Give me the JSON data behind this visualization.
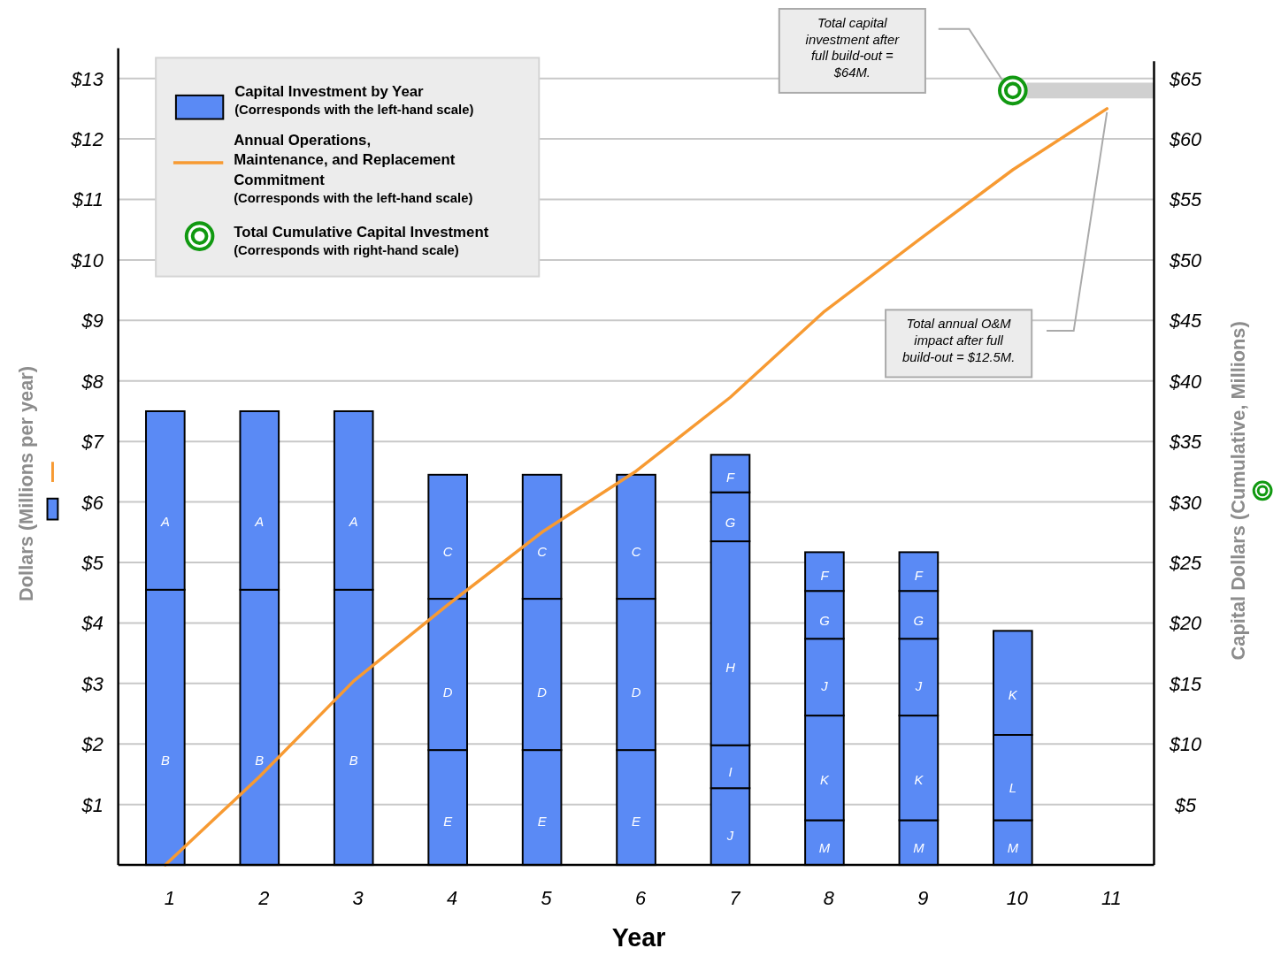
{
  "chart_data": {
    "type": "bar",
    "stacked": true,
    "xlabel": "Year",
    "ylabel": "Dollars (Millions per year)",
    "y2label": "Capital Dollars (Cumulative, Millions)",
    "categories": [
      "1",
      "2",
      "3",
      "4",
      "5",
      "6",
      "7",
      "8",
      "9",
      "10",
      "11"
    ],
    "series": [
      {
        "name": "M",
        "color": "#5a8af5",
        "values": [
          null,
          null,
          null,
          null,
          null,
          null,
          null,
          0.74,
          0.74,
          0.74,
          null
        ]
      },
      {
        "name": "L",
        "color": "#5a8af5",
        "values": [
          null,
          null,
          null,
          null,
          null,
          null,
          null,
          null,
          null,
          1.41,
          null
        ]
      },
      {
        "name": "K",
        "color": "#5a8af5",
        "values": [
          null,
          null,
          null,
          null,
          null,
          null,
          null,
          1.73,
          1.73,
          1.72,
          null
        ]
      },
      {
        "name": "J",
        "color": "#5a8af5",
        "values": [
          null,
          null,
          null,
          null,
          null,
          null,
          1.27,
          1.27,
          1.27,
          null,
          null
        ]
      },
      {
        "name": "I",
        "color": "#5a8af5",
        "values": [
          null,
          null,
          null,
          null,
          null,
          null,
          0.71,
          null,
          null,
          null,
          null
        ]
      },
      {
        "name": "H",
        "color": "#5a8af5",
        "values": [
          null,
          null,
          null,
          null,
          null,
          null,
          3.37,
          null,
          null,
          null,
          null
        ]
      },
      {
        "name": "G",
        "color": "#5a8af5",
        "values": [
          null,
          null,
          null,
          null,
          null,
          null,
          0.81,
          0.79,
          0.79,
          null,
          null
        ]
      },
      {
        "name": "F",
        "color": "#5a8af5",
        "values": [
          null,
          null,
          null,
          null,
          null,
          null,
          0.62,
          0.64,
          0.64,
          null,
          null
        ]
      },
      {
        "name": "B",
        "color": "#5a8af5",
        "values": [
          4.55,
          4.55,
          4.55,
          null,
          null,
          null,
          null,
          null,
          null,
          null,
          null
        ]
      },
      {
        "name": "A",
        "color": "#5a8af5",
        "values": [
          2.95,
          2.95,
          2.95,
          null,
          null,
          null,
          null,
          null,
          null,
          null,
          null
        ]
      },
      {
        "name": "E",
        "color": "#5a8af5",
        "values": [
          null,
          null,
          null,
          1.9,
          1.9,
          1.9,
          null,
          null,
          null,
          null,
          null
        ]
      },
      {
        "name": "D",
        "color": "#5a8af5",
        "values": [
          null,
          null,
          null,
          2.5,
          2.5,
          2.5,
          null,
          null,
          null,
          null,
          null
        ]
      },
      {
        "name": "C",
        "color": "#5a8af5",
        "values": [
          null,
          null,
          null,
          2.05,
          2.05,
          2.05,
          null,
          null,
          null,
          null,
          null
        ]
      },
      {
        "name": "Annual Operations, Maintenance, and Replacement Commitment",
        "type": "line",
        "color": "#f79a32",
        "values": [
          0,
          1.46,
          3.04,
          4.3,
          5.5,
          6.51,
          7.73,
          9.15,
          10.33,
          11.49,
          12.5
        ]
      },
      {
        "name": "Total Cumulative Capital Investment",
        "type": "scatter",
        "axis": "y2",
        "color": "#119911",
        "x": [
          "10"
        ],
        "values": [
          64
        ]
      }
    ],
    "ylim": [
      0,
      13.5
    ],
    "yticks": [
      {
        "value": 1,
        "label": "$1"
      },
      {
        "value": 2,
        "label": "$2"
      },
      {
        "value": 3,
        "label": "$3"
      },
      {
        "value": 4,
        "label": "$4"
      },
      {
        "value": 5,
        "label": "$5"
      },
      {
        "value": 6,
        "label": "$6"
      },
      {
        "value": 7,
        "label": "$7"
      },
      {
        "value": 8,
        "label": "$8"
      },
      {
        "value": 9,
        "label": "$9"
      },
      {
        "value": 10,
        "label": "$10"
      },
      {
        "value": 11,
        "label": "$11"
      },
      {
        "value": 12,
        "label": "$12"
      },
      {
        "value": 13,
        "label": "$13"
      }
    ],
    "y2lim": [
      0,
      67.5
    ],
    "y2ticks": [
      {
        "value": 5,
        "label": "$5"
      },
      {
        "value": 10,
        "label": "$10"
      },
      {
        "value": 15,
        "label": "$15"
      },
      {
        "value": 20,
        "label": "$20"
      },
      {
        "value": 25,
        "label": "$25"
      },
      {
        "value": 30,
        "label": "$30"
      },
      {
        "value": 35,
        "label": "$35"
      },
      {
        "value": 40,
        "label": "$40"
      },
      {
        "value": 45,
        "label": "$45"
      },
      {
        "value": 50,
        "label": "$50"
      },
      {
        "value": 55,
        "label": "$55"
      },
      {
        "value": 60,
        "label": "$60"
      },
      {
        "value": 65,
        "label": "$65"
      }
    ],
    "grid": "y",
    "legend": "top left",
    "annotations": [
      "Capital Investment by Year",
      "(Corresponds with the left-hand scale)",
      "(Corresponds with the left-hand scale)",
      "(Corresponds with right-hand scale)",
      "Total capital investment after full build-out = $64M.",
      "Total annual O&M impact after full build-out = $12.5M."
    ]
  }
}
